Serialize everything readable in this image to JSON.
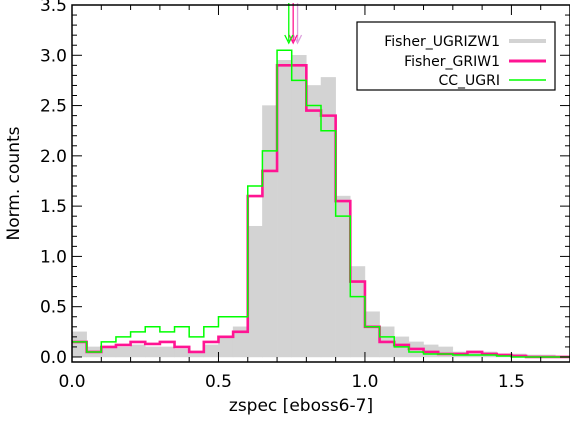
{
  "chart_data": {
    "type": "histogram",
    "xlabel": "zspec [eboss6-7]",
    "ylabel": "Norm. counts",
    "xlim": [
      0.0,
      1.7
    ],
    "ylim": [
      -0.05,
      3.5
    ],
    "x_ticks": [
      0.0,
      0.5,
      1.0,
      1.5
    ],
    "x_tick_labels": [
      "0.0",
      "0.5",
      "1.0",
      "1.5"
    ],
    "y_ticks": [
      0.0,
      0.5,
      1.0,
      1.5,
      2.0,
      2.5,
      3.0,
      3.5
    ],
    "y_tick_labels": [
      "0.0",
      "0.5",
      "1.0",
      "1.5",
      "2.0",
      "2.5",
      "3.0",
      "3.5"
    ],
    "legend_position": "top-right",
    "bin_edges": [
      0.0,
      0.05,
      0.1,
      0.15,
      0.2,
      0.25,
      0.3,
      0.35,
      0.4,
      0.45,
      0.5,
      0.55,
      0.6,
      0.65,
      0.7,
      0.75,
      0.8,
      0.85,
      0.9,
      0.95,
      1.0,
      1.05,
      1.1,
      1.15,
      1.2,
      1.25,
      1.3,
      1.35,
      1.4,
      1.45,
      1.5,
      1.55,
      1.6,
      1.65,
      1.7
    ],
    "series": [
      {
        "name": "Fisher_UGRIZW1",
        "style": "filled",
        "color": "#d3d3d3",
        "values": [
          0.25,
          0.1,
          0.1,
          0.1,
          0.12,
          0.1,
          0.1,
          0.08,
          0.05,
          0.12,
          0.2,
          0.3,
          1.3,
          2.5,
          2.95,
          3.0,
          2.7,
          2.78,
          1.6,
          0.9,
          0.45,
          0.3,
          0.2,
          0.15,
          0.12,
          0.1,
          0.05,
          0.05,
          0.05,
          0.03,
          0.03,
          0.02,
          0.02,
          0.01
        ]
      },
      {
        "name": "Fisher_GRIW1",
        "style": "step",
        "color": "#ff1493",
        "values": [
          0.15,
          0.05,
          0.1,
          0.12,
          0.15,
          0.13,
          0.15,
          0.1,
          0.05,
          0.15,
          0.2,
          0.25,
          1.6,
          1.85,
          2.9,
          2.9,
          2.45,
          2.4,
          1.55,
          0.75,
          0.3,
          0.15,
          0.12,
          0.08,
          0.05,
          0.03,
          0.03,
          0.05,
          0.03,
          0.02,
          0.01,
          0.0,
          0.0,
          0.0
        ]
      },
      {
        "name": "CC_UGRI",
        "style": "step",
        "color": "#00ff00",
        "values": [
          0.15,
          0.05,
          0.15,
          0.2,
          0.25,
          0.3,
          0.25,
          0.3,
          0.2,
          0.3,
          0.4,
          0.4,
          1.7,
          2.05,
          3.05,
          2.75,
          2.5,
          2.25,
          1.4,
          0.6,
          0.3,
          0.2,
          0.1,
          0.05,
          0.03,
          0.03,
          0.02,
          0.02,
          0.02,
          0.01,
          0.0,
          0.0,
          0.0,
          0.0
        ]
      }
    ],
    "markers": [
      {
        "series": "Fisher_UGRIZW1",
        "x": 0.77,
        "color": "#dda0dd"
      },
      {
        "series": "Fisher_GRIW1",
        "x": 0.755,
        "color": "#ff1493"
      },
      {
        "series": "CC_UGRI",
        "x": 0.74,
        "color": "#00ff00"
      }
    ]
  }
}
